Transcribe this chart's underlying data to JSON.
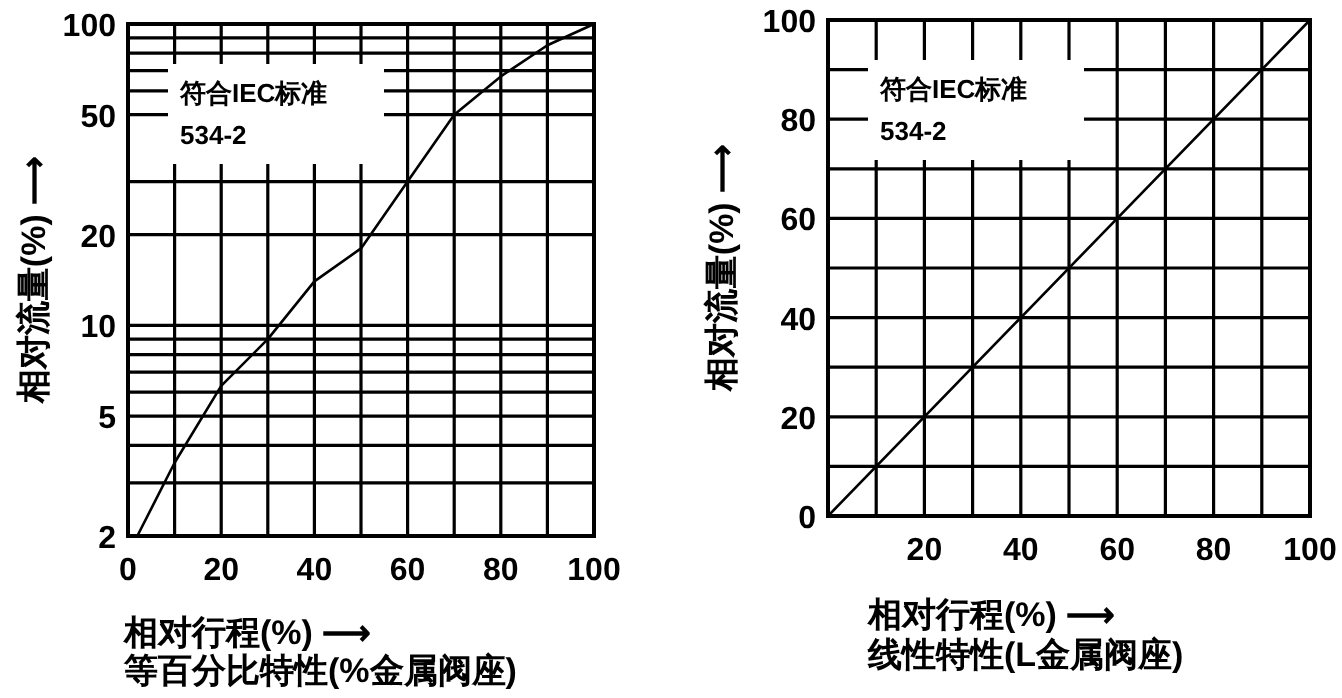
{
  "chart_data": [
    {
      "type": "line",
      "log": "y",
      "grid": true,
      "xlim": [
        0,
        100
      ],
      "ylim": [
        2,
        100
      ],
      "xticks": [
        0,
        {
          "value": 10,
          "label": null
        },
        20,
        {
          "value": 30,
          "label": null
        },
        40,
        {
          "value": 50,
          "label": null
        },
        60,
        {
          "value": 70,
          "label": null
        },
        80,
        {
          "value": 90,
          "label": null
        },
        100
      ],
      "yticks": [
        2,
        {
          "value": 3,
          "label": null
        },
        {
          "value": 4,
          "label": null
        },
        5,
        {
          "value": 6,
          "label": null
        },
        {
          "value": 7,
          "label": null
        },
        {
          "value": 8,
          "label": null
        },
        {
          "value": 9,
          "label": null
        },
        10,
        20,
        {
          "value": 30,
          "label": null
        },
        50,
        {
          "value": 60,
          "label": null
        },
        {
          "value": 70,
          "label": null
        },
        {
          "value": 80,
          "label": null
        },
        {
          "value": 90,
          "label": null
        },
        100
      ],
      "series": [
        {
          "color": "#000000",
          "x": [
            2,
            10,
            20,
            30,
            40,
            50,
            60,
            70,
            80,
            90,
            100
          ],
          "values": [
            2,
            3.5,
            6.3,
            9,
            14,
            18,
            30,
            50,
            67,
            85,
            100
          ]
        }
      ],
      "xlabel": "相对行程(%) ⟶",
      "ylabel": "相对流量(%) ⟶",
      "annotations": [
        "符合IEC标准\n534-2",
        "等百分比特性(%金属阀座)"
      ]
    },
    {
      "type": "line",
      "grid": true,
      "xlim": [
        0,
        100
      ],
      "ylim": [
        0,
        100
      ],
      "xticks": [
        {
          "value": 0,
          "label": null
        },
        {
          "value": 10,
          "label": null
        },
        20,
        {
          "value": 30,
          "label": null
        },
        40,
        {
          "value": 50,
          "label": null
        },
        60,
        {
          "value": 70,
          "label": null
        },
        80,
        {
          "value": 90,
          "label": null
        },
        100
      ],
      "yticks": [
        0,
        {
          "value": 10,
          "label": null
        },
        20,
        {
          "value": 30,
          "label": null
        },
        40,
        {
          "value": 50,
          "label": null
        },
        60,
        {
          "value": 70,
          "label": null
        },
        80,
        {
          "value": 90,
          "label": null
        },
        100
      ],
      "series": [
        {
          "color": "#000000",
          "x": [
            0,
            100
          ],
          "values": [
            0,
            100
          ]
        }
      ],
      "xlabel": "相对行程(%) ⟶",
      "ylabel": "相对流量(%) ⟶",
      "annotations": [
        "符合IEC标准\n534-2",
        "线性特性(L金属阀座)"
      ]
    }
  ]
}
